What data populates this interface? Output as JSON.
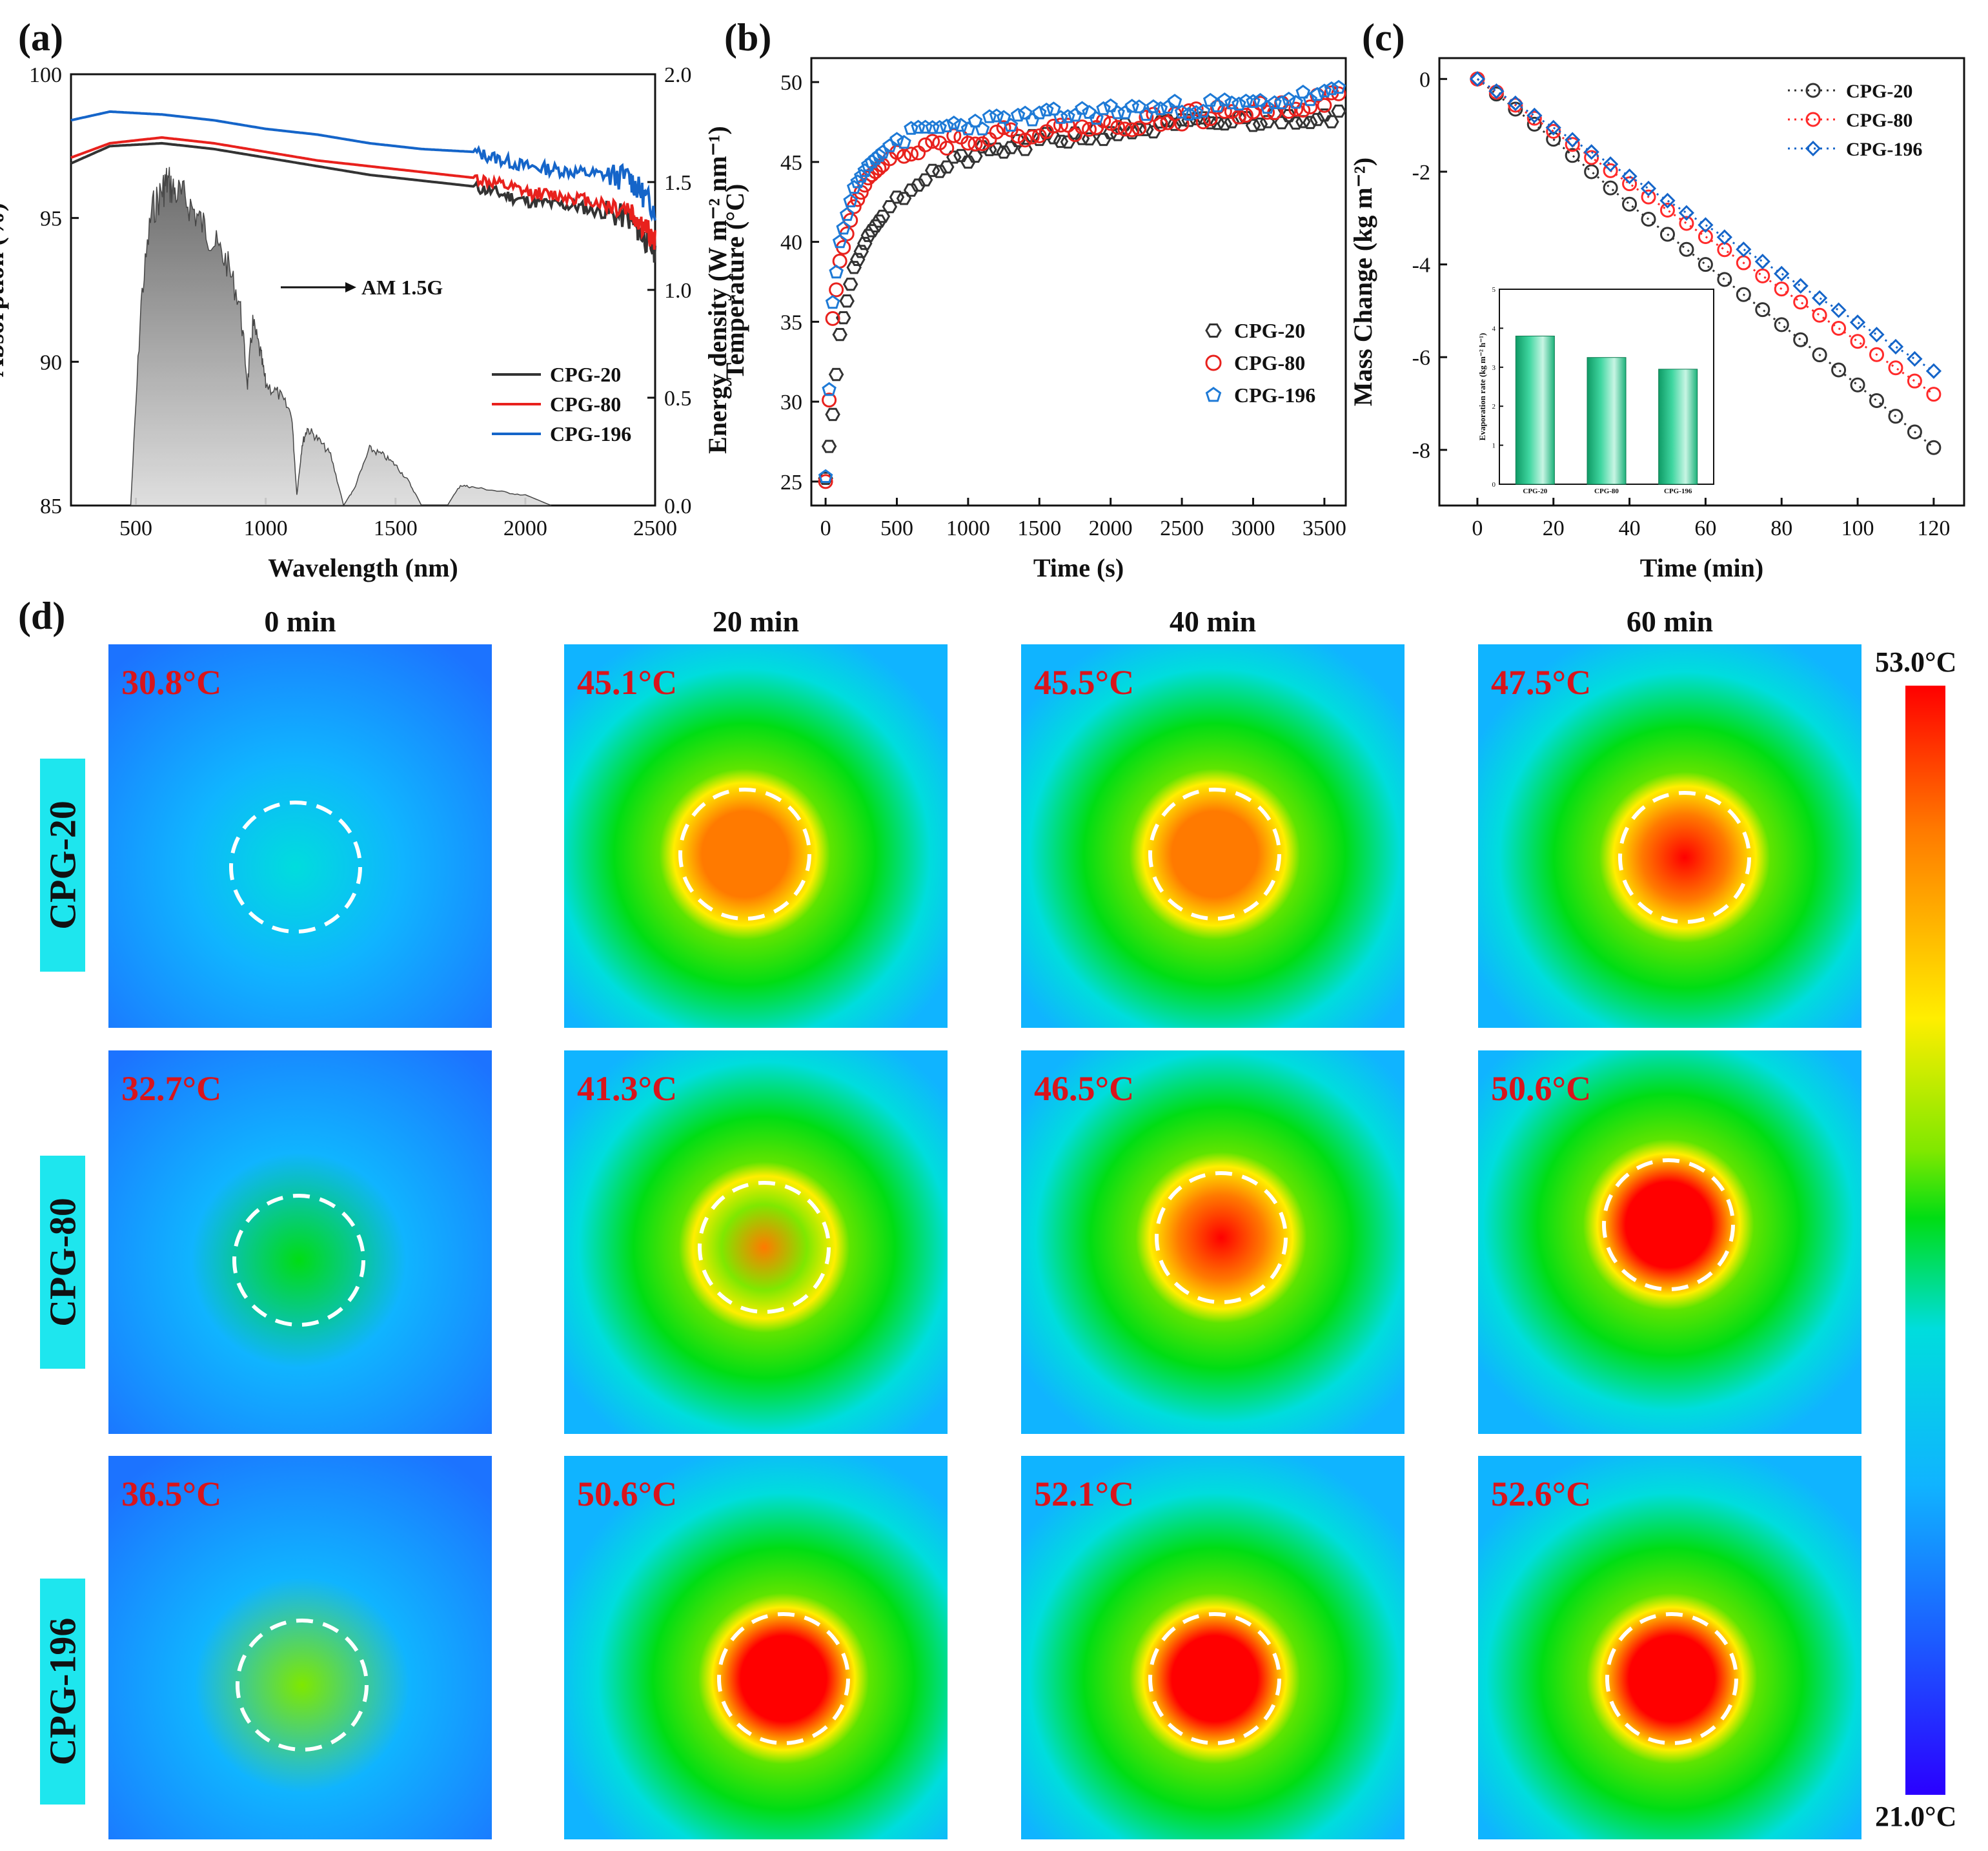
{
  "panel_labels": {
    "a": "(a)",
    "b": "(b)",
    "c": "(c)",
    "d": "(d)"
  },
  "chart_data": [
    {
      "id": "a",
      "type": "line",
      "title": "",
      "xlabel": "Wavelength (nm)",
      "ylabel": "Absorption (%)",
      "y2label": "Energy density (W m⁻² nm⁻¹)",
      "xlim": [
        250,
        2500
      ],
      "ylim": [
        85,
        100
      ],
      "y2lim": [
        0,
        2.0
      ],
      "xticks": [
        500,
        1000,
        1500,
        2000,
        2500
      ],
      "yticks": [
        85,
        90,
        95,
        100
      ],
      "y2ticks": [
        0.0,
        0.5,
        1.0,
        1.5,
        2.0
      ],
      "legend_position": "bottom-right",
      "annotation": "AM 1.5G",
      "series": [
        {
          "name": "CPG-20",
          "color": "#333333",
          "x": [
            250,
            400,
            600,
            800,
            1000,
            1200,
            1400,
            1600,
            1800,
            2000,
            2200,
            2400,
            2500
          ],
          "y": [
            96.9,
            97.5,
            97.6,
            97.4,
            97.1,
            96.8,
            96.5,
            96.3,
            96.1,
            95.6,
            95.4,
            95.0,
            93.8
          ]
        },
        {
          "name": "CPG-80",
          "color": "#e8211d",
          "x": [
            250,
            400,
            600,
            800,
            1000,
            1200,
            1400,
            1600,
            1800,
            2000,
            2200,
            2400,
            2500
          ],
          "y": [
            97.1,
            97.6,
            97.8,
            97.6,
            97.3,
            97.0,
            96.8,
            96.6,
            96.4,
            95.9,
            95.7,
            95.3,
            94.2
          ]
        },
        {
          "name": "CPG-196",
          "color": "#1565c9",
          "x": [
            250,
            400,
            600,
            800,
            1000,
            1200,
            1400,
            1600,
            1800,
            2000,
            2200,
            2400,
            2500
          ],
          "y": [
            98.4,
            98.7,
            98.6,
            98.4,
            98.1,
            97.9,
            97.6,
            97.4,
            97.3,
            96.8,
            96.6,
            96.4,
            95.3
          ]
        },
        {
          "name": "AM 1.5G",
          "type": "area",
          "axis": "y2",
          "color": "#9b9b9b",
          "x": [
            480,
            520,
            560,
            600,
            620,
            650,
            700,
            750,
            800,
            850,
            900,
            930,
            950,
            980,
            1000,
            1050,
            1100,
            1120,
            1140,
            1160,
            1200,
            1250,
            1300,
            1340,
            1400,
            1450,
            1500,
            1550,
            1600,
            1700,
            1750,
            1800,
            1900,
            2000,
            2100
          ],
          "y": [
            0,
            1.0,
            1.45,
            1.55,
            1.6,
            1.55,
            1.5,
            1.4,
            1.3,
            1.2,
            1.0,
            0.6,
            0.9,
            0.75,
            0.6,
            0.55,
            0.45,
            0.05,
            0.3,
            0.38,
            0.33,
            0.25,
            0,
            0.08,
            0.28,
            0.25,
            0.2,
            0.12,
            0,
            0,
            0.1,
            0.09,
            0.07,
            0.05,
            0
          ]
        }
      ]
    },
    {
      "id": "b",
      "type": "scatter",
      "title": "",
      "xlabel": "Time (s)",
      "ylabel": "Temperature (°C)",
      "xlim": [
        -100,
        3650
      ],
      "ylim": [
        23.5,
        51.5
      ],
      "xticks": [
        0,
        500,
        1000,
        1500,
        2000,
        2500,
        3000,
        3500
      ],
      "yticks": [
        25,
        30,
        35,
        40,
        45,
        50
      ],
      "legend_position": "center-right",
      "series": [
        {
          "name": "CPG-20",
          "marker": "hexagon",
          "color": "#333333",
          "x": [
            0,
            50,
            100,
            200,
            300,
            500,
            700,
            1000,
            1500,
            2000,
            2500,
            3000,
            3600
          ],
          "y": [
            25.2,
            29.2,
            34.2,
            38.4,
            40.4,
            42.8,
            44.1,
            45.3,
            46.3,
            46.9,
            47.3,
            47.6,
            48.0
          ]
        },
        {
          "name": "CPG-80",
          "marker": "circle",
          "color": "#e8211d",
          "x": [
            0,
            50,
            100,
            200,
            300,
            500,
            700,
            1000,
            1500,
            2000,
            2500,
            3000,
            3600
          ],
          "y": [
            25.0,
            35.2,
            38.8,
            42.2,
            44.0,
            45.6,
            46.1,
            46.5,
            46.9,
            47.3,
            47.8,
            48.2,
            49.0
          ]
        },
        {
          "name": "CPG-196",
          "marker": "pentagon",
          "color": "#1e7ad6",
          "x": [
            0,
            50,
            100,
            200,
            300,
            500,
            700,
            1000,
            1500,
            2000,
            2500,
            3000,
            3600
          ],
          "y": [
            25.3,
            36.2,
            40.0,
            43.4,
            44.8,
            46.4,
            47.0,
            47.4,
            47.8,
            48.2,
            48.4,
            48.6,
            49.3
          ]
        }
      ]
    },
    {
      "id": "c",
      "type": "line",
      "title": "",
      "xlabel": "Time (min)",
      "ylabel": "Mass Change (kg m⁻²)",
      "xlim": [
        -10,
        128
      ],
      "ylim": [
        -9.2,
        0.45
      ],
      "xticks": [
        0,
        20,
        40,
        60,
        80,
        100,
        120
      ],
      "yticks": [
        0,
        -2,
        -4,
        -6,
        -8
      ],
      "legend_position": "top-right",
      "series": [
        {
          "name": "CPG-20",
          "marker": "circle-open",
          "line": "dotted",
          "color": "#333333",
          "x": [
            0,
            20,
            40,
            60,
            80,
            100,
            120
          ],
          "y": [
            0,
            -1.3,
            -2.7,
            -4.0,
            -5.3,
            -6.6,
            -7.95
          ]
        },
        {
          "name": "CPG-80",
          "marker": "circle-open",
          "line": "dotted",
          "color": "#ff2a2a",
          "x": [
            0,
            20,
            40,
            60,
            80,
            100,
            120
          ],
          "y": [
            0,
            -1.13,
            -2.26,
            -3.4,
            -4.53,
            -5.66,
            -6.8
          ]
        },
        {
          "name": "CPG-196",
          "marker": "diamond-open",
          "line": "dotted",
          "color": "#1565c9",
          "x": [
            0,
            20,
            40,
            60,
            80,
            100,
            120
          ],
          "y": [
            0,
            -1.05,
            -2.1,
            -3.15,
            -4.2,
            -5.25,
            -6.3
          ]
        }
      ],
      "inset": {
        "type": "bar",
        "ylabel": "Evaporation rate (kg m⁻² h⁻¹)",
        "ylim": [
          0,
          5
        ],
        "yticks": [
          0,
          1,
          2,
          3,
          4,
          5
        ],
        "categories": [
          "CPG-20",
          "CPG-80",
          "CPG-196"
        ],
        "values": [
          3.8,
          3.25,
          2.95
        ],
        "color": "#20b57a"
      }
    }
  ],
  "thermal": {
    "columns": [
      "0 min",
      "20 min",
      "40 min",
      "60 min"
    ],
    "rows": [
      {
        "label": "CPG-20",
        "temps": [
          "30.8°C",
          "45.1°C",
          "45.5°C",
          "47.5°C"
        ]
      },
      {
        "label": "CPG-80",
        "temps": [
          "32.7°C",
          "41.3°C",
          "46.5°C",
          "50.6°C"
        ]
      },
      {
        "label": "CPG-196",
        "temps": [
          "36.5°C",
          "50.6°C",
          "52.1°C",
          "52.6°C"
        ]
      }
    ],
    "scale_max": "53.0°C",
    "scale_min": "21.0°C"
  }
}
